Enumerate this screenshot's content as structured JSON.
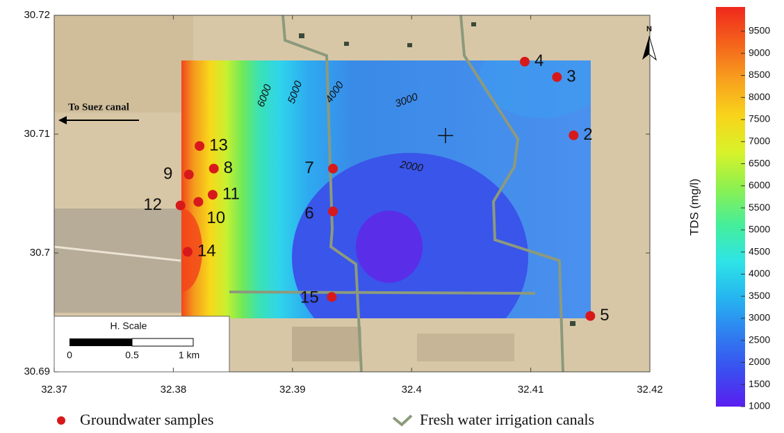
{
  "map": {
    "xlim": [
      32.37,
      32.42
    ],
    "ylim": [
      30.69,
      30.72
    ],
    "xticks": [
      32.37,
      32.38,
      32.39,
      32.4,
      32.41,
      32.42
    ],
    "yticks": [
      30.69,
      30.7,
      30.71,
      30.72
    ],
    "sample_color": "#d7191c",
    "samples": [
      {
        "label": "4",
        "lon": 32.4095,
        "lat": 30.7161
      },
      {
        "label": "3",
        "lon": 32.4122,
        "lat": 30.7148
      },
      {
        "label": "2",
        "lon": 32.4136,
        "lat": 30.7099
      },
      {
        "label": "5",
        "lon": 32.415,
        "lat": 30.6947
      },
      {
        "label": "13",
        "lon": 32.3822,
        "lat": 30.709
      },
      {
        "label": "9",
        "lon": 32.3813,
        "lat": 30.7066
      },
      {
        "label": "8",
        "lon": 32.3834,
        "lat": 30.7071
      },
      {
        "label": "11",
        "lon": 32.3833,
        "lat": 30.7049
      },
      {
        "label": "10",
        "lon": 32.3821,
        "lat": 30.7043
      },
      {
        "label": "12",
        "lon": 32.3806,
        "lat": 30.704
      },
      {
        "label": "14",
        "lon": 32.3812,
        "lat": 30.7001
      },
      {
        "label": "7",
        "lon": 32.3934,
        "lat": 30.7071
      },
      {
        "label": "6",
        "lon": 32.3934,
        "lat": 30.7035
      },
      {
        "label": "15",
        "lon": 32.3933,
        "lat": 30.6963
      }
    ],
    "contour_labels": [
      "6000",
      "5000",
      "4000",
      "3000",
      "2000"
    ],
    "direction_label": "To Suez canal",
    "north": "N",
    "scale_bar": {
      "title": "H. Scale",
      "labels": [
        "0",
        "0.5",
        "1 km"
      ]
    },
    "colorbar": {
      "label": "TDS (mg/l)",
      "clim": [
        1000,
        10050
      ],
      "ticks": [
        1000,
        1500,
        2000,
        2500,
        3000,
        3500,
        4000,
        4500,
        5000,
        5500,
        6000,
        6500,
        7000,
        7500,
        8000,
        8500,
        9000,
        9500
      ],
      "colors": [
        "#5a1ef0",
        "#3a4ff0",
        "#2f7ff0",
        "#26b5f0",
        "#2ee4e6",
        "#45ee9a",
        "#8cf050",
        "#d8f22a",
        "#f8d41a",
        "#f8a01e",
        "#f4631c",
        "#f0281c"
      ]
    },
    "legend": {
      "samples": "Groundwater samples",
      "canals": "Fresh water irrigation canals"
    }
  }
}
